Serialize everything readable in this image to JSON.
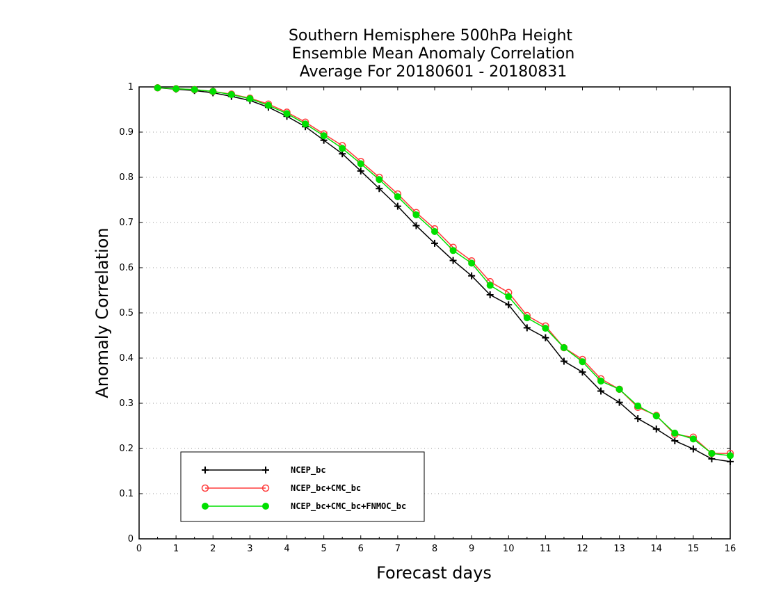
{
  "chart_data": {
    "type": "line",
    "title": [
      "Southern Hemisphere 500hPa Height",
      "Ensemble Mean Anomaly Correlation",
      "Average For 20180601 - 20180831"
    ],
    "xlabel": "Forecast days",
    "ylabel": "Anomaly Correlation",
    "xlim": [
      0,
      16
    ],
    "ylim": [
      0,
      1
    ],
    "x_ticks": [
      "0",
      "1",
      "2",
      "3",
      "4",
      "5",
      "6",
      "7",
      "8",
      "9",
      "10",
      "11",
      "12",
      "13",
      "14",
      "15",
      "16"
    ],
    "y_ticks": [
      "0",
      "0.1",
      "0.2",
      "0.3",
      "0.4",
      "0.5",
      "0.6",
      "0.7",
      "0.8",
      "0.9",
      "1"
    ],
    "grid": "horizontal dotted",
    "legend_position": "bottom-left",
    "x": [
      0.5,
      1,
      1.5,
      2,
      2.5,
      3,
      3.5,
      4,
      4.5,
      5,
      5.5,
      6,
      6.5,
      7,
      7.5,
      8,
      8.5,
      9,
      9.5,
      10,
      10.5,
      11,
      11.5,
      12,
      12.5,
      13,
      13.5,
      14,
      14.5,
      15,
      15.5,
      16
    ],
    "series": [
      {
        "name": "NCEP_bc",
        "color": "#000000",
        "marker": "plus",
        "values": [
          0.998,
          0.995,
          0.992,
          0.987,
          0.979,
          0.97,
          0.955,
          0.935,
          0.912,
          0.882,
          0.852,
          0.814,
          0.775,
          0.736,
          0.693,
          0.654,
          0.616,
          0.582,
          0.54,
          0.518,
          0.467,
          0.445,
          0.393,
          0.369,
          0.327,
          0.302,
          0.266,
          0.243,
          0.217,
          0.199,
          0.177,
          0.171
        ]
      },
      {
        "name": "NCEP_bc+CMC_bc",
        "color": "#ff3b3b",
        "marker": "open-circle",
        "values": [
          0.998,
          0.996,
          0.994,
          0.99,
          0.984,
          0.975,
          0.962,
          0.944,
          0.922,
          0.896,
          0.87,
          0.835,
          0.8,
          0.763,
          0.722,
          0.686,
          0.645,
          0.615,
          0.569,
          0.545,
          0.494,
          0.471,
          0.423,
          0.397,
          0.354,
          0.331,
          0.291,
          0.273,
          0.231,
          0.225,
          0.189,
          0.189
        ]
      },
      {
        "name": "NCEP_bc+CMC_bc+FNMOC_bc",
        "color": "#00e000",
        "marker": "filled-circle",
        "values": [
          0.998,
          0.996,
          0.994,
          0.99,
          0.983,
          0.974,
          0.959,
          0.941,
          0.918,
          0.892,
          0.864,
          0.83,
          0.795,
          0.757,
          0.717,
          0.68,
          0.638,
          0.61,
          0.561,
          0.536,
          0.489,
          0.466,
          0.423,
          0.392,
          0.349,
          0.331,
          0.294,
          0.272,
          0.234,
          0.221,
          0.189,
          0.184
        ]
      }
    ]
  }
}
